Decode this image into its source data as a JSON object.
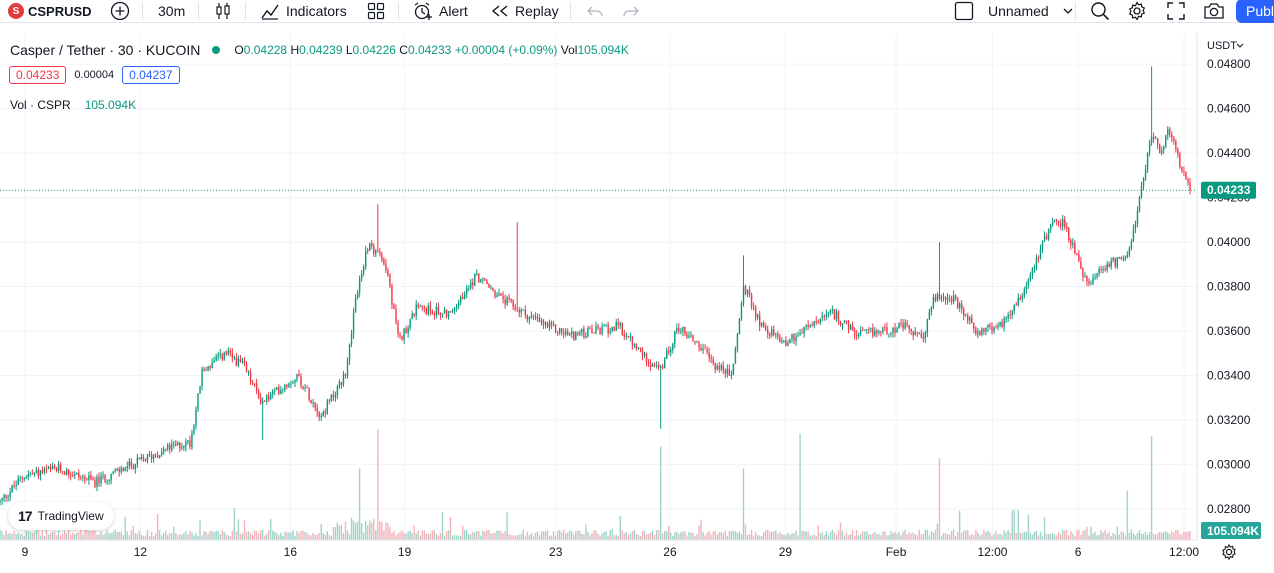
{
  "toolbar": {
    "symbol": "CSPRUSD",
    "interval": "30m",
    "indicators_label": "Indicators",
    "alert_label": "Alert",
    "replay_label": "Replay",
    "layout_name": "Unnamed",
    "publish_label": "Publ"
  },
  "legend": {
    "title": "Casper / Tether · 30 · KUCOIN",
    "o_label": "O",
    "o_value": "0.04228",
    "h_label": "H",
    "h_value": "0.04239",
    "l_label": "L",
    "l_value": "0.04226",
    "c_label": "C",
    "c_value": "0.04233",
    "change": "+0.00004 (+0.09%)",
    "vol_label": "Vol",
    "vol_value": "105.094K",
    "bid": "0.04233",
    "spread": "0.00004",
    "ask": "0.04237",
    "vol_series_label": "Vol · CSPR",
    "vol_series_value": "105.094K"
  },
  "branding": {
    "logo_text": "TradingView"
  },
  "colors": {
    "up": "#089981",
    "down": "#f23645",
    "volume_up": "#8fcdc2",
    "volume_down": "#f5a6ae",
    "grid": "#f0f3fa",
    "accent": "#2962ff"
  },
  "chart_data": {
    "type": "candlestick",
    "currency_label": "USDT",
    "y_ticks": [
      "0.04800",
      "0.04600",
      "0.04400",
      "0.04200",
      "0.04000",
      "0.03800",
      "0.03600",
      "0.03400",
      "0.03200",
      "0.03000",
      "0.02800"
    ],
    "y_range": [
      0.0266,
      0.0494
    ],
    "x_ticks": [
      "9",
      "12",
      "16",
      "19",
      "23",
      "26",
      "29",
      "Feb",
      "12:00",
      "6",
      "12:00"
    ],
    "last_price": "0.04233",
    "last_price_value": 0.04233,
    "last_volume": "105.094K",
    "price_path": [
      {
        "x": 0.0,
        "y": 0.0283
      },
      {
        "x": 0.02,
        "y": 0.0295
      },
      {
        "x": 0.05,
        "y": 0.0298
      },
      {
        "x": 0.08,
        "y": 0.0292
      },
      {
        "x": 0.1,
        "y": 0.0297
      },
      {
        "x": 0.12,
        "y": 0.0302
      },
      {
        "x": 0.14,
        "y": 0.0307
      },
      {
        "x": 0.16,
        "y": 0.031
      },
      {
        "x": 0.17,
        "y": 0.0342
      },
      {
        "x": 0.19,
        "y": 0.035
      },
      {
        "x": 0.205,
        "y": 0.0344
      },
      {
        "x": 0.22,
        "y": 0.0328
      },
      {
        "x": 0.25,
        "y": 0.034
      },
      {
        "x": 0.27,
        "y": 0.0322
      },
      {
        "x": 0.29,
        "y": 0.034
      },
      {
        "x": 0.3,
        "y": 0.0378
      },
      {
        "x": 0.31,
        "y": 0.04
      },
      {
        "x": 0.325,
        "y": 0.0388
      },
      {
        "x": 0.335,
        "y": 0.0355
      },
      {
        "x": 0.35,
        "y": 0.037
      },
      {
        "x": 0.38,
        "y": 0.0368
      },
      {
        "x": 0.4,
        "y": 0.0385
      },
      {
        "x": 0.42,
        "y": 0.0375
      },
      {
        "x": 0.44,
        "y": 0.0368
      },
      {
        "x": 0.46,
        "y": 0.0362
      },
      {
        "x": 0.48,
        "y": 0.0358
      },
      {
        "x": 0.5,
        "y": 0.036
      },
      {
        "x": 0.52,
        "y": 0.0362
      },
      {
        "x": 0.535,
        "y": 0.0352
      },
      {
        "x": 0.555,
        "y": 0.0342
      },
      {
        "x": 0.57,
        "y": 0.0362
      },
      {
        "x": 0.585,
        "y": 0.0355
      },
      {
        "x": 0.6,
        "y": 0.0345
      },
      {
        "x": 0.615,
        "y": 0.034
      },
      {
        "x": 0.625,
        "y": 0.038
      },
      {
        "x": 0.64,
        "y": 0.0362
      },
      {
        "x": 0.66,
        "y": 0.0355
      },
      {
        "x": 0.68,
        "y": 0.0362
      },
      {
        "x": 0.7,
        "y": 0.0368
      },
      {
        "x": 0.72,
        "y": 0.0358
      },
      {
        "x": 0.74,
        "y": 0.036
      },
      {
        "x": 0.76,
        "y": 0.0362
      },
      {
        "x": 0.775,
        "y": 0.0356
      },
      {
        "x": 0.785,
        "y": 0.0375
      },
      {
        "x": 0.8,
        "y": 0.0375
      },
      {
        "x": 0.82,
        "y": 0.036
      },
      {
        "x": 0.84,
        "y": 0.0362
      },
      {
        "x": 0.86,
        "y": 0.0378
      },
      {
        "x": 0.875,
        "y": 0.0398
      },
      {
        "x": 0.885,
        "y": 0.041
      },
      {
        "x": 0.895,
        "y": 0.0408
      },
      {
        "x": 0.905,
        "y": 0.0392
      },
      {
        "x": 0.915,
        "y": 0.038
      },
      {
        "x": 0.93,
        "y": 0.039
      },
      {
        "x": 0.945,
        "y": 0.0392
      },
      {
        "x": 0.955,
        "y": 0.041
      },
      {
        "x": 0.962,
        "y": 0.0432
      },
      {
        "x": 0.968,
        "y": 0.045
      },
      {
        "x": 0.975,
        "y": 0.044
      },
      {
        "x": 0.982,
        "y": 0.045
      },
      {
        "x": 0.99,
        "y": 0.0438
      },
      {
        "x": 1.0,
        "y": 0.04233
      }
    ],
    "spikes": [
      {
        "x": 0.318,
        "y": 0.0417
      },
      {
        "x": 0.434,
        "y": 0.0409
      },
      {
        "x": 0.624,
        "y": 0.0394
      },
      {
        "x": 0.789,
        "y": 0.04
      },
      {
        "x": 0.968,
        "y": 0.0479
      },
      {
        "x": 0.555,
        "y": 0.0316
      },
      {
        "x": 0.22,
        "y": 0.0311
      }
    ],
    "volume_spikes": [
      {
        "x": 0.318,
        "v": 0.85
      },
      {
        "x": 0.555,
        "v": 0.72
      },
      {
        "x": 0.624,
        "v": 0.55
      },
      {
        "x": 0.673,
        "v": 0.82
      },
      {
        "x": 0.789,
        "v": 0.63
      },
      {
        "x": 0.968,
        "v": 0.8
      },
      {
        "x": 0.302,
        "v": 0.55
      },
      {
        "x": 0.948,
        "v": 0.38
      }
    ]
  }
}
